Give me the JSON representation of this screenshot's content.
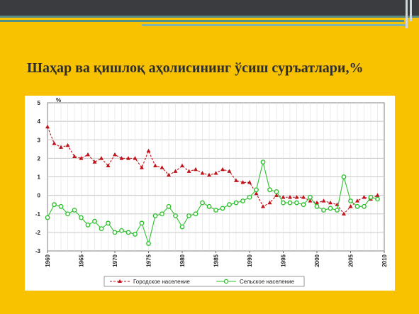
{
  "slide": {
    "title": "Шаҳар ва қишлоқ аҳолисининг ўсиш суръатлари,%"
  },
  "chart_data": {
    "type": "line",
    "unit_label": "%",
    "x": [
      1960,
      1961,
      1962,
      1963,
      1964,
      1965,
      1966,
      1967,
      1968,
      1969,
      1970,
      1971,
      1972,
      1973,
      1974,
      1975,
      1976,
      1977,
      1978,
      1979,
      1980,
      1981,
      1982,
      1983,
      1984,
      1985,
      1986,
      1987,
      1988,
      1989,
      1990,
      1991,
      1992,
      1993,
      1994,
      1995,
      1996,
      1997,
      1998,
      1999,
      2000,
      2001,
      2002,
      2003,
      2004,
      2005,
      2006,
      2007,
      2008,
      2009
    ],
    "series": [
      {
        "name": "Городское население",
        "color": "#c0121a",
        "marker": "triangle",
        "values": [
          3.7,
          2.8,
          2.6,
          2.7,
          2.1,
          2.0,
          2.2,
          1.8,
          2.0,
          1.6,
          2.2,
          2.0,
          2.0,
          2.0,
          1.5,
          2.4,
          1.6,
          1.5,
          1.1,
          1.3,
          1.6,
          1.3,
          1.4,
          1.2,
          1.1,
          1.2,
          1.4,
          1.3,
          0.8,
          0.7,
          0.7,
          0.1,
          -0.6,
          -0.4,
          0.0,
          -0.1,
          -0.1,
          -0.1,
          -0.1,
          -0.3,
          -0.4,
          -0.3,
          -0.4,
          -0.5,
          -1.0,
          -0.6,
          -0.3,
          -0.1,
          -0.2,
          0.0
        ]
      },
      {
        "name": "Сельское население",
        "color": "#2ec12e",
        "marker": "circle",
        "values": [
          -1.2,
          -0.5,
          -0.6,
          -1.0,
          -0.8,
          -1.2,
          -1.6,
          -1.4,
          -1.8,
          -1.5,
          -2.0,
          -1.9,
          -2.0,
          -2.1,
          -1.5,
          -2.6,
          -1.1,
          -1.0,
          -0.6,
          -1.1,
          -1.7,
          -1.1,
          -1.0,
          -0.4,
          -0.6,
          -0.8,
          -0.7,
          -0.5,
          -0.4,
          -0.3,
          -0.1,
          0.3,
          1.8,
          0.3,
          0.2,
          -0.4,
          -0.4,
          -0.4,
          -0.5,
          -0.1,
          -0.6,
          -0.8,
          -0.7,
          -0.8,
          1.0,
          -0.3,
          -0.6,
          -0.6,
          -0.1,
          -0.2
        ]
      }
    ],
    "ylim": [
      -3,
      5
    ],
    "yticks": [
      "5",
      "4",
      "3",
      "2",
      "1",
      "0",
      "-1",
      "-2",
      "-3"
    ],
    "xticks": [
      "1960",
      "1965",
      "1970",
      "1975",
      "1980",
      "1985",
      "1990",
      "1995",
      "2000",
      "2005",
      "2010"
    ],
    "grid": true,
    "legend_position": "bottom"
  }
}
